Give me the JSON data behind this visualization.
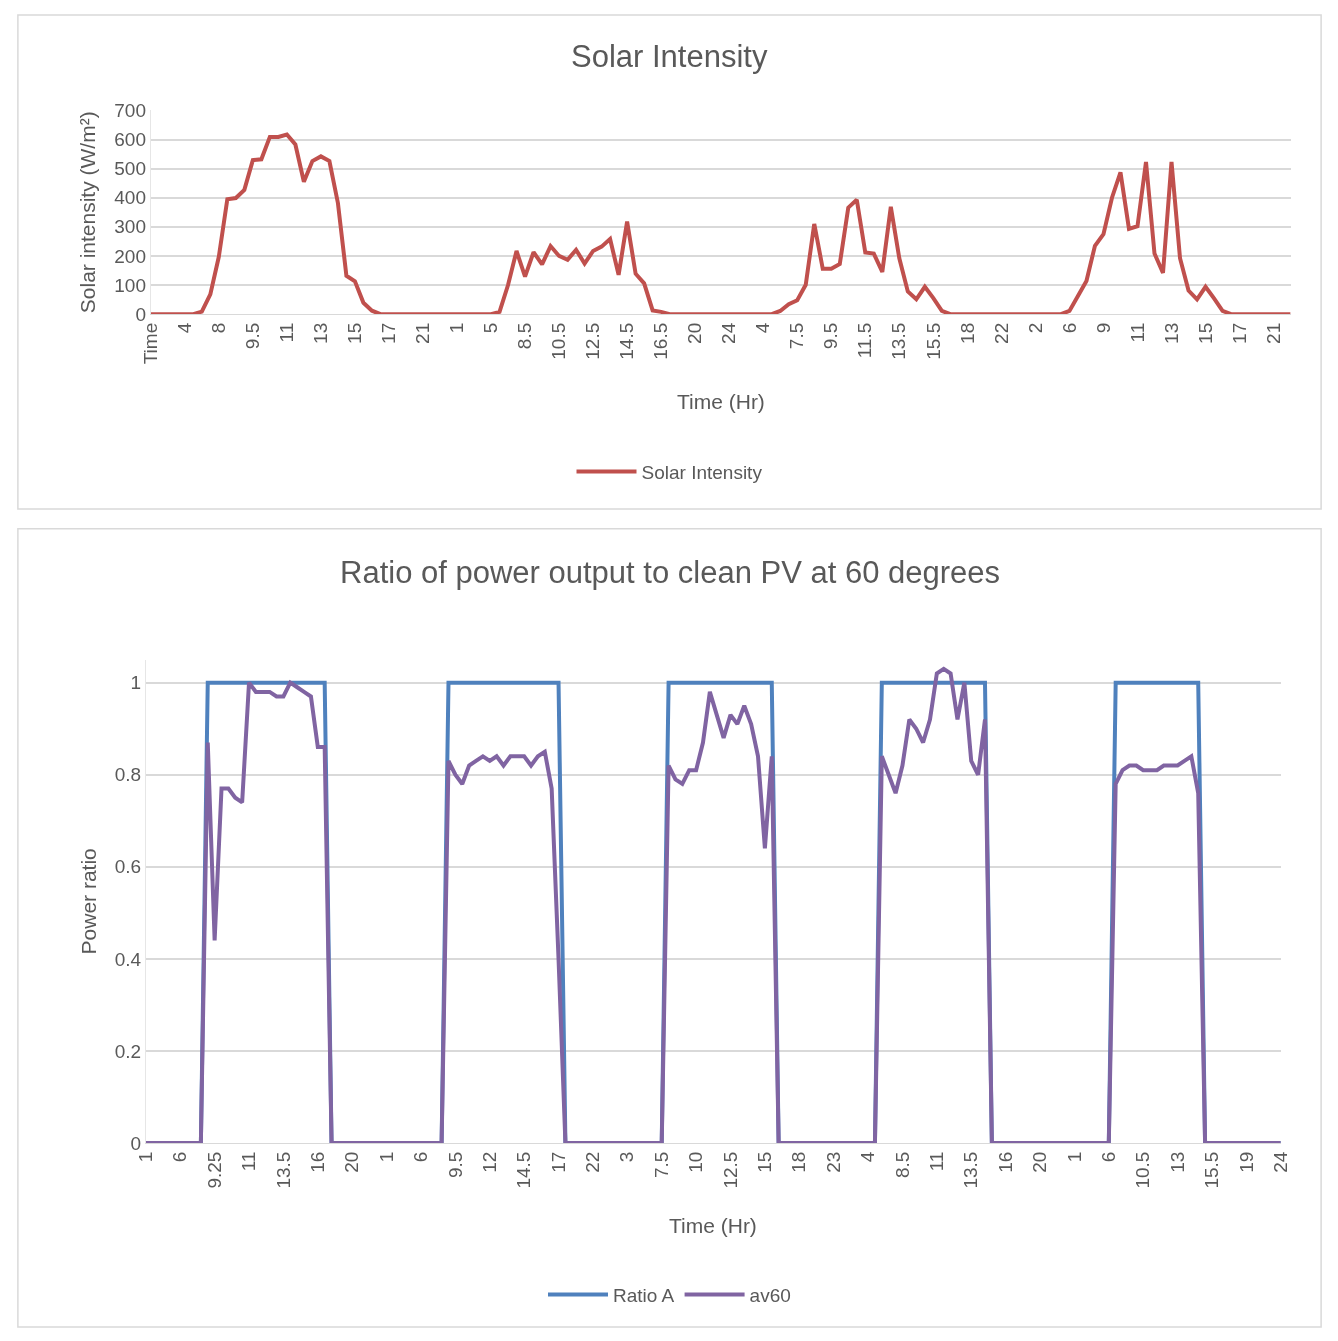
{
  "chart_data": [
    {
      "type": "line",
      "title": "Solar Intensity",
      "xlabel": "Time (Hr)",
      "ylabel": "Solar intensity (W/m²)",
      "categories": [
        "Time",
        null,
        null,
        null,
        "4",
        null,
        null,
        null,
        "8",
        null,
        null,
        null,
        "9.5",
        null,
        null,
        null,
        "11",
        null,
        null,
        null,
        "13",
        null,
        null,
        null,
        "15",
        null,
        null,
        null,
        "17",
        null,
        null,
        null,
        "21",
        null,
        null,
        null,
        "1",
        null,
        null,
        null,
        "5",
        null,
        null,
        null,
        "8.5",
        null,
        null,
        null,
        "10.5",
        null,
        null,
        null,
        "12.5",
        null,
        null,
        null,
        "14.5",
        null,
        null,
        null,
        "16.5",
        null,
        null,
        null,
        "20",
        null,
        null,
        null,
        "24",
        null,
        null,
        null,
        "4",
        null,
        null,
        null,
        "7.5",
        null,
        null,
        null,
        "9.5",
        null,
        null,
        null,
        "11.5",
        null,
        null,
        null,
        "13.5",
        null,
        null,
        null,
        "15.5",
        null,
        null,
        null,
        "18",
        null,
        null,
        null,
        "22",
        null,
        null,
        null,
        "2",
        null,
        null,
        null,
        "6",
        null,
        null,
        null,
        "9",
        null,
        null,
        null,
        "11",
        null,
        null,
        null,
        "13",
        null,
        null,
        null,
        "15",
        null,
        null,
        null,
        "17",
        null,
        null,
        null,
        "21",
        null,
        null
      ],
      "series": [
        {
          "name": "Solar Intensity",
          "color": "#c0504d",
          "values": [
            0,
            0,
            0,
            0,
            0,
            0,
            9,
            68,
            197,
            395,
            399,
            427,
            529,
            532,
            609,
            609,
            617,
            583,
            455,
            526,
            542,
            526,
            382,
            132,
            113,
            39,
            12,
            0,
            0,
            0,
            0,
            0,
            0,
            0,
            0,
            0,
            0,
            0,
            0,
            0,
            0,
            8,
            100,
            217,
            129,
            213,
            171,
            234,
            200,
            187,
            221,
            174,
            217,
            232,
            258,
            135,
            318,
            139,
            106,
            13,
            8,
            0,
            0,
            0,
            0,
            0,
            0,
            0,
            0,
            0,
            0,
            0,
            0,
            0,
            11,
            34,
            48,
            101,
            310,
            156,
            156,
            172,
            366,
            393,
            212,
            208,
            145,
            369,
            192,
            78,
            51,
            94,
            55,
            11,
            0,
            0,
            0,
            0,
            0,
            0,
            0,
            0,
            0,
            0,
            0,
            0,
            0,
            0,
            11,
            62,
            114,
            235,
            275,
            400,
            487,
            293,
            302,
            523,
            208,
            142,
            523,
            192,
            81,
            51,
            94,
            54,
            11,
            0,
            0,
            0,
            0,
            0,
            0,
            0,
            0
          ]
        }
      ],
      "ylim": [
        0,
        700
      ],
      "yticks": [
        0,
        100,
        200,
        300,
        400,
        500,
        600,
        700
      ],
      "grid": "y",
      "legend": "bottom"
    },
    {
      "type": "line",
      "title": "Ratio of power output to clean PV at 60 degrees",
      "xlabel": "Time (Hr)",
      "ylabel": "Power ratio",
      "categories": [
        "1",
        null,
        null,
        null,
        null,
        "6",
        null,
        null,
        null,
        null,
        "9.25",
        null,
        null,
        null,
        null,
        "11",
        null,
        null,
        null,
        null,
        "13.5",
        null,
        null,
        null,
        null,
        "16",
        null,
        null,
        null,
        null,
        "20",
        null,
        null,
        null,
        null,
        "1",
        null,
        null,
        null,
        null,
        "6",
        null,
        null,
        null,
        null,
        "9.5",
        null,
        null,
        null,
        null,
        "12",
        null,
        null,
        null,
        null,
        "14.5",
        null,
        null,
        null,
        null,
        "17",
        null,
        null,
        null,
        null,
        "22",
        null,
        null,
        null,
        null,
        "3",
        null,
        null,
        null,
        null,
        "7.5",
        null,
        null,
        null,
        null,
        "10",
        null,
        null,
        null,
        null,
        "12.5",
        null,
        null,
        null,
        null,
        "15",
        null,
        null,
        null,
        null,
        "18",
        null,
        null,
        null,
        null,
        "23",
        null,
        null,
        null,
        null,
        "4",
        null,
        null,
        null,
        null,
        "8.5",
        null,
        null,
        null,
        null,
        "11",
        null,
        null,
        null,
        null,
        "13.5",
        null,
        null,
        null,
        null,
        "16",
        null,
        null,
        null,
        null,
        "20",
        null,
        null,
        null,
        null,
        "1",
        null,
        null,
        null,
        null,
        "6",
        null,
        null,
        null,
        null,
        "10.5",
        null,
        null,
        null,
        null,
        "13",
        null,
        null,
        null,
        null,
        "15.5",
        null,
        null,
        null,
        null,
        "19",
        null,
        null,
        null,
        null,
        "24"
      ],
      "series": [
        {
          "name": "Ratio A",
          "color": "#4f81bd",
          "values": [
            null,
            null,
            null,
            null,
            null,
            null,
            null,
            0,
            0,
            1,
            1,
            1,
            1,
            1,
            1,
            1,
            1,
            1,
            1,
            1,
            1,
            1,
            1,
            1,
            1,
            1,
            1,
            0,
            0,
            0,
            0,
            0,
            0,
            0,
            0,
            0,
            0,
            0,
            0,
            0,
            0,
            0,
            0,
            0,
            1,
            1,
            1,
            1,
            1,
            1,
            1,
            1,
            1,
            1,
            1,
            1,
            1,
            1,
            1,
            1,
            1,
            0,
            0,
            0,
            0,
            0,
            0,
            0,
            0,
            0,
            0,
            0,
            0,
            0,
            0,
            0,
            1,
            1,
            1,
            1,
            1,
            1,
            1,
            1,
            1,
            1,
            1,
            1,
            1,
            1,
            1,
            1,
            0,
            0,
            0,
            0,
            0,
            0,
            0,
            0,
            0,
            0,
            0,
            0,
            0,
            0,
            0,
            1,
            1,
            1,
            1,
            1,
            1,
            1,
            1,
            1,
            1,
            1,
            1,
            1,
            1,
            1,
            1,
            0,
            0,
            0,
            0,
            0,
            0,
            0,
            0,
            0,
            0,
            0,
            0,
            0,
            0,
            0,
            0,
            0,
            0,
            1,
            1,
            1,
            1,
            1,
            1,
            1,
            1,
            1,
            1,
            1,
            1,
            1,
            0,
            0,
            0,
            0,
            0,
            0,
            0,
            0,
            0,
            0,
            0,
            0
          ]
        },
        {
          "name": "av60",
          "color": "#8064a2",
          "values": [
            0,
            0,
            0,
            0,
            0,
            0,
            0,
            0,
            0,
            0.87,
            0.44,
            0.77,
            0.77,
            0.75,
            0.74,
            1.0,
            0.98,
            0.98,
            0.98,
            0.97,
            0.97,
            1.0,
            0.99,
            0.98,
            0.97,
            0.86,
            0.86,
            0,
            0,
            0,
            0,
            0,
            0,
            0,
            0,
            0,
            0,
            0,
            0,
            0,
            0,
            0,
            0,
            0,
            0.83,
            0.8,
            0.78,
            0.82,
            0.83,
            0.84,
            0.83,
            0.84,
            0.82,
            0.84,
            0.84,
            0.84,
            0.82,
            0.84,
            0.85,
            0.77,
            0.4,
            0,
            0,
            0,
            0,
            0,
            0,
            0,
            0,
            0,
            0,
            0,
            0,
            0,
            0,
            0,
            0.82,
            0.79,
            0.78,
            0.81,
            0.81,
            0.87,
            0.98,
            0.93,
            0.88,
            0.93,
            0.91,
            0.95,
            0.91,
            0.84,
            0.64,
            0.84,
            0,
            0,
            0,
            0,
            0,
            0,
            0,
            0,
            0,
            0,
            0,
            0,
            0,
            0,
            0,
            0.84,
            0.8,
            0.76,
            0.82,
            0.92,
            0.9,
            0.87,
            0.92,
            1.02,
            1.03,
            1.02,
            0.92,
            1.0,
            0.83,
            0.8,
            0.92,
            0,
            0,
            0,
            0,
            0,
            0,
            0,
            0,
            0,
            0,
            0,
            0,
            0,
            0,
            0,
            0,
            0,
            0,
            0.78,
            0.81,
            0.82,
            0.82,
            0.81,
            0.81,
            0.81,
            0.82,
            0.82,
            0.82,
            0.83,
            0.84,
            0.76,
            0,
            0,
            0,
            0,
            0,
            0,
            0,
            0,
            0,
            0,
            0,
            0
          ]
        }
      ],
      "ylim": [
        0,
        1.05
      ],
      "yticks": [
        0,
        0.2,
        0.4,
        0.6,
        0.8,
        1
      ],
      "grid": "y",
      "legend": "bottom"
    }
  ]
}
